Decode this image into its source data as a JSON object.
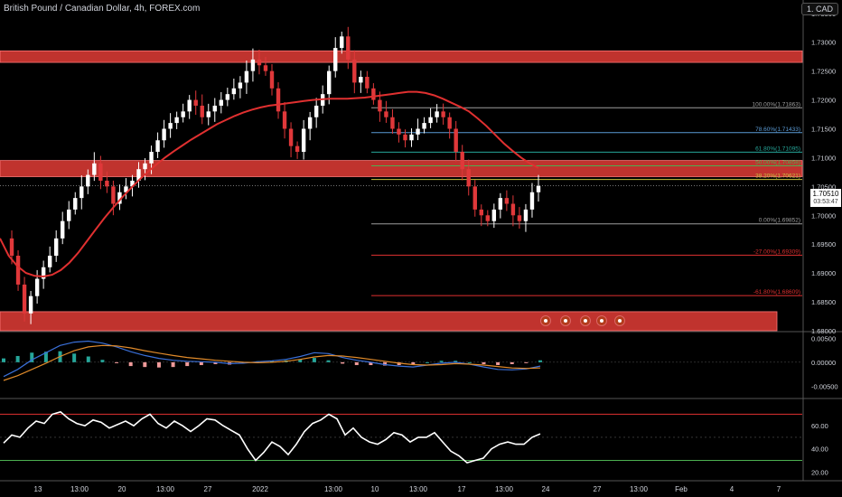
{
  "title": "British Pound / Canadian Dollar, 4h, FOREX.com",
  "currency_button": "1. CAD",
  "last_price": "1.70510",
  "countdown": "03:53:47",
  "colors": {
    "background": "#000000",
    "up_candle": "#ffffff",
    "down_candle": "#e0383a",
    "zone": "#c0332e",
    "moving_average": "#e03030",
    "macd_line": "#3a6fd8",
    "signal_line": "#e08a2a",
    "rsi_line": "#ffffff",
    "rsi_upper": "#e03030",
    "rsi_lower": "#4caf50"
  },
  "chart_data": [
    {
      "type": "candlestick",
      "name": "price",
      "x_ticks": [
        "13",
        "13:00",
        "20",
        "13:00",
        "27",
        "2022",
        "13:00",
        "10",
        "13:00",
        "17",
        "13:00",
        "24",
        "27",
        "13:00",
        "Feb",
        "4",
        "7"
      ],
      "y_ticks": [
        "1.73500",
        "1.73000",
        "1.72500",
        "1.72000",
        "1.71500",
        "1.71000",
        "1.70500",
        "1.70000",
        "1.69500",
        "1.69000",
        "1.68500",
        "1.68000"
      ],
      "ylim": [
        1.68,
        1.737
      ],
      "zones": [
        {
          "from": 1.7265,
          "to": 1.7285
        },
        {
          "from": 1.7067,
          "to": 1.7095
        },
        {
          "from": 1.68,
          "to": 1.6833
        }
      ],
      "close_series": [
        1.696,
        1.693,
        1.688,
        1.683,
        1.686,
        1.689,
        1.691,
        1.693,
        1.696,
        1.699,
        1.701,
        1.703,
        1.705,
        1.707,
        1.709,
        1.706,
        1.705,
        1.702,
        1.704,
        1.705,
        1.706,
        1.708,
        1.709,
        1.711,
        1.713,
        1.715,
        1.716,
        1.717,
        1.718,
        1.72,
        1.719,
        1.717,
        1.718,
        1.719,
        1.72,
        1.721,
        1.722,
        1.723,
        1.725,
        1.727,
        1.726,
        1.725,
        1.722,
        1.718,
        1.715,
        1.712,
        1.711,
        1.715,
        1.717,
        1.719,
        1.721,
        1.725,
        1.729,
        1.731,
        1.727,
        1.723,
        1.724,
        1.722,
        1.72,
        1.718,
        1.717,
        1.715,
        1.714,
        1.713,
        1.714,
        1.715,
        1.716,
        1.717,
        1.718,
        1.717,
        1.715,
        1.711,
        1.708,
        1.705,
        1.701,
        1.7,
        1.699,
        1.701,
        1.703,
        1.702,
        1.7,
        1.699,
        1.701,
        1.704,
        1.7051
      ],
      "moving_average": [
        1.696,
        1.693,
        1.6912,
        1.69,
        1.6895,
        1.6894,
        1.6897,
        1.6905,
        1.6918,
        1.6935,
        1.6955,
        1.6975,
        1.6995,
        1.7013,
        1.703,
        1.7046,
        1.7061,
        1.7075,
        1.7088,
        1.71,
        1.7111,
        1.7121,
        1.7131,
        1.714,
        1.7149,
        1.7158,
        1.7165,
        1.7172,
        1.7178,
        1.7183,
        1.7187,
        1.719,
        1.7192,
        1.7194,
        1.7196,
        1.7198,
        1.72,
        1.7201,
        1.7202,
        1.7202,
        1.7202,
        1.7203,
        1.7204,
        1.7206,
        1.7208,
        1.721,
        1.7212,
        1.7214,
        1.7214,
        1.7212,
        1.7208,
        1.7202,
        1.7195,
        1.7188,
        1.718,
        1.7168,
        1.7155,
        1.714,
        1.7125,
        1.7112,
        1.71,
        1.709,
        1.7082
      ],
      "fibonacci": [
        {
          "label": "100.00%(1.71863)",
          "value": 1.71863,
          "color": "#9e9e9e"
        },
        {
          "label": "78.60%(1.71433)",
          "value": 1.71433,
          "color": "#5b9bd5"
        },
        {
          "label": "61.80%(1.71095)",
          "value": 1.71095,
          "color": "#26a69a"
        },
        {
          "label": "50.00%(1.70858)",
          "value": 1.70858,
          "color": "#4caf50"
        },
        {
          "label": "38.20%(1.70621)",
          "value": 1.70621,
          "color": "#c8c040"
        },
        {
          "label": "0.00%(1.69852)",
          "value": 1.69852,
          "color": "#9e9e9e"
        },
        {
          "label": "-27.00%(1.69309)",
          "value": 1.69309,
          "color": "#e03030"
        },
        {
          "label": "-61.80%(1.68609)",
          "value": 1.68609,
          "color": "#e03030"
        }
      ]
    },
    {
      "type": "histogram",
      "name": "MACD",
      "y_ticks": [
        "0.00500",
        "0.00000",
        "-0.00500"
      ],
      "ylim": [
        -0.0072,
        0.0062
      ],
      "macd": [
        -0.003,
        -0.0015,
        0.0005,
        0.002,
        0.0035,
        0.0042,
        0.0044,
        0.004,
        0.0032,
        0.0022,
        0.0014,
        0.0008,
        0.0004,
        0.0002,
        0.0001,
        0.0,
        -0.0003,
        -0.0002,
        0.0001,
        0.0003,
        0.0006,
        0.0012,
        0.002,
        0.0018,
        0.001,
        0.0004,
        0.0,
        -0.0005,
        -0.0008,
        -0.001,
        -0.0006,
        -0.0002,
        0.0,
        -0.0004,
        -0.001,
        -0.0015,
        -0.0016,
        -0.0014,
        -0.0008
      ],
      "signal": [
        -0.0038,
        -0.0028,
        -0.0015,
        -0.0002,
        0.0012,
        0.0024,
        0.0032,
        0.0035,
        0.0034,
        0.003,
        0.0024,
        0.0019,
        0.0014,
        0.001,
        0.0007,
        0.0004,
        0.0002,
        0.0,
        -0.0001,
        0.0,
        0.0002,
        0.0006,
        0.0011,
        0.0014,
        0.0013,
        0.001,
        0.0006,
        0.0002,
        -0.0002,
        -0.0005,
        -0.0006,
        -0.0005,
        -0.0003,
        -0.0004,
        -0.0006,
        -0.0009,
        -0.0012,
        -0.0013,
        -0.0012
      ]
    },
    {
      "type": "line",
      "name": "RSI",
      "y_ticks": [
        "60.00",
        "40.00",
        "20.00"
      ],
      "ylim": [
        14,
        82
      ],
      "upper_band": 70,
      "mid_band": 50,
      "lower_band": 30,
      "values": [
        45,
        52,
        50,
        58,
        64,
        62,
        70,
        72,
        66,
        62,
        60,
        65,
        63,
        58,
        61,
        64,
        60,
        66,
        70,
        62,
        58,
        64,
        60,
        55,
        60,
        66,
        65,
        60,
        56,
        52,
        40,
        30,
        37,
        46,
        42,
        35,
        44,
        55,
        62,
        65,
        70,
        66,
        52,
        58,
        50,
        46,
        44,
        48,
        54,
        52,
        46,
        50,
        50,
        54,
        46,
        38,
        34,
        28,
        30,
        32,
        40,
        44,
        46,
        44,
        44,
        50,
        53
      ]
    }
  ]
}
